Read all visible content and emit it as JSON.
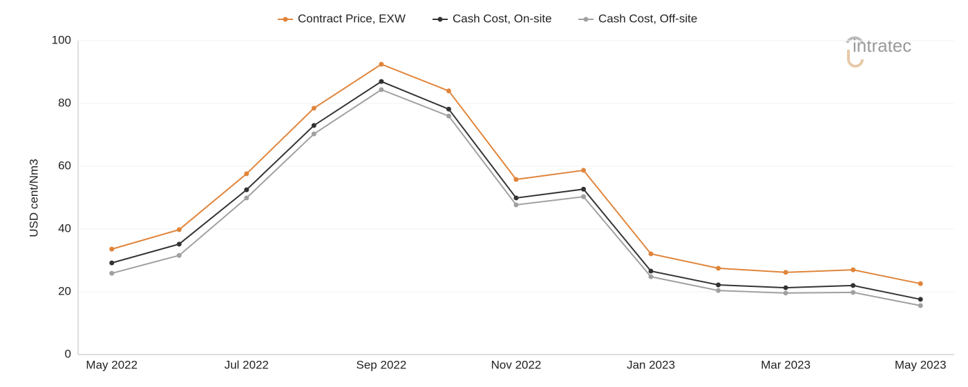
{
  "logo": "intratec",
  "chart_data": {
    "type": "line",
    "categories": [
      "May 2022",
      null,
      "Jul 2022",
      null,
      "Sep 2022",
      null,
      "Nov 2022",
      null,
      "Jan 2023",
      null,
      "Mar 2023",
      null,
      "May 2023"
    ],
    "y_label": "USD cent/Nm3",
    "ylim": [
      0,
      100
    ],
    "yticks": [
      0,
      20,
      40,
      60,
      80,
      100
    ],
    "grid": true,
    "series": [
      {
        "name": "Contract Price, EXW",
        "color": "#e0843a",
        "values": [
          33.6,
          39.8,
          57.6,
          78.5,
          92.5,
          84.0,
          55.8,
          58.7,
          32.1,
          27.5,
          26.2,
          27.0,
          22.6
        ]
      },
      {
        "name": "Cash Cost, On-site",
        "color": "#333333",
        "values": [
          29.2,
          35.2,
          52.5,
          73.0,
          87.0,
          78.2,
          49.9,
          52.7,
          26.6,
          22.2,
          21.3,
          22.0,
          17.6
        ]
      },
      {
        "name": "Cash Cost, Off-site",
        "color": "#a0a0a0",
        "values": [
          25.9,
          31.6,
          49.9,
          70.3,
          84.4,
          76.0,
          47.7,
          50.3,
          24.8,
          20.4,
          19.6,
          19.8,
          15.6
        ]
      }
    ]
  }
}
